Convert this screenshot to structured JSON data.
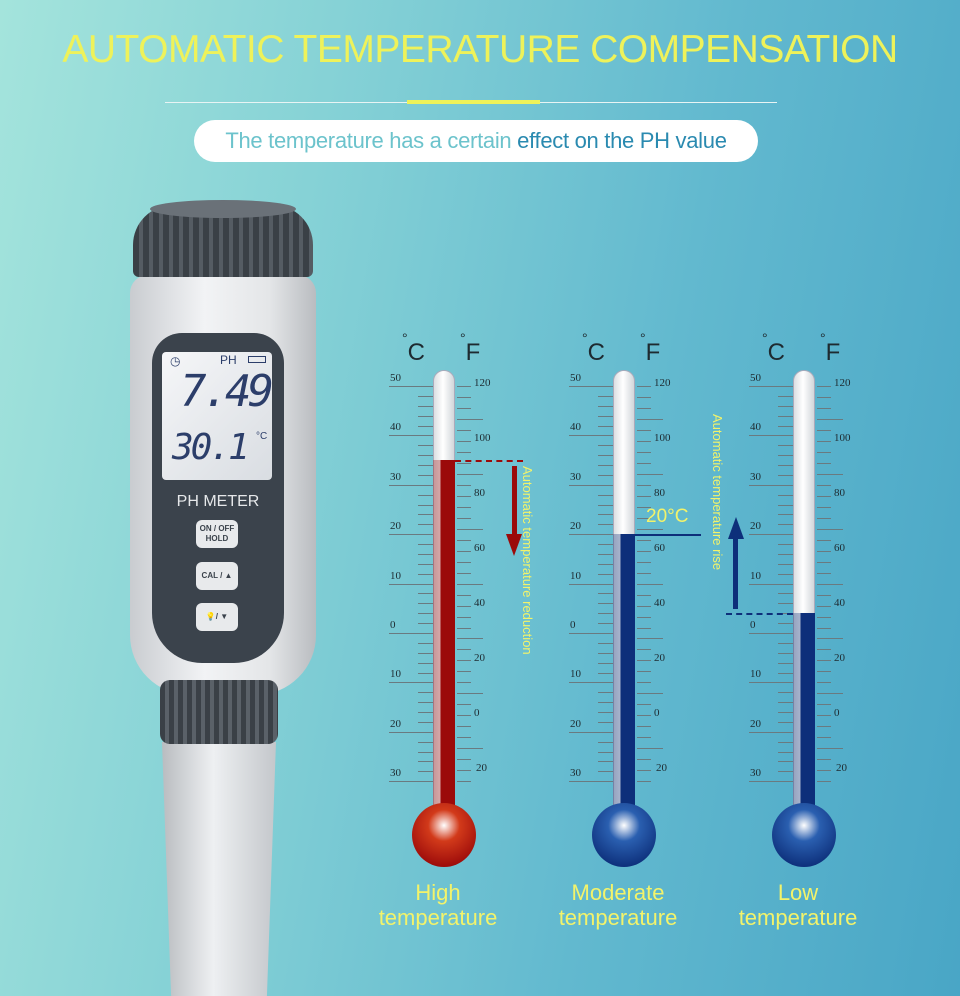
{
  "header": {
    "title": "AUTOMATIC TEMPERATURE COMPENSATION",
    "subtitle_part1": "The temperature has a certain ",
    "subtitle_part2": "effect on the PH value"
  },
  "device": {
    "display": {
      "ph_label": "PH",
      "ph_value": "7.49",
      "temp_value": "30.1",
      "temp_unit": "°C",
      "clock_icon": "clock-icon",
      "battery_icon": "battery-icon"
    },
    "brand": "PH METER",
    "buttons": [
      {
        "label": "ON / OFF HOLD"
      },
      {
        "label": "CAL / ▲"
      },
      {
        "label": "💡/ ▼",
        "icon": "bulb-icon"
      }
    ]
  },
  "scale": {
    "celsius_unit": "C",
    "fahrenheit_unit": "F",
    "celsius_labels": [
      "50",
      "40",
      "30",
      "20",
      "10",
      "0",
      "10",
      "20",
      "30"
    ],
    "fahrenheit_labels": [
      "120",
      "100",
      "80",
      "60",
      "40",
      "20",
      "0",
      "20"
    ]
  },
  "thermometers": [
    {
      "caption_line1": "High",
      "caption_line2": "temperature",
      "level_c": 35,
      "color": "#9b0a0a",
      "bulb_color": "#d23a1a",
      "annotation": "Automatic temperature reduction",
      "arrow": "down"
    },
    {
      "caption_line1": "Moderate",
      "caption_line2": "temperature",
      "level_c": 20,
      "color": "#0d2f7a",
      "bulb_color": "#2a5fb0",
      "marker": "20°C"
    },
    {
      "caption_line1": "Low",
      "caption_line2": "temperature",
      "level_c": 4,
      "color": "#0d2f7a",
      "bulb_color": "#2a5fb0",
      "annotation": "Automatic temperature rise",
      "arrow": "up"
    }
  ]
}
